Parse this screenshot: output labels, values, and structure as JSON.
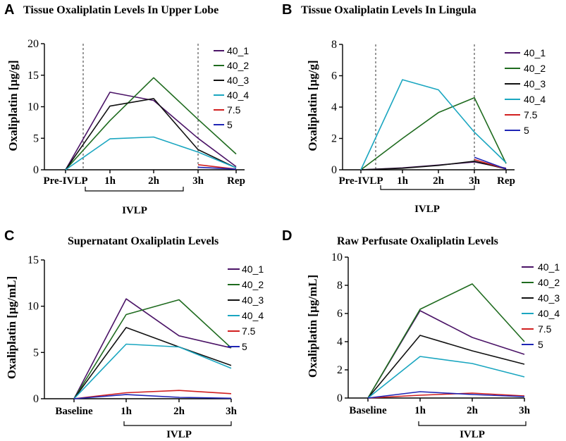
{
  "chart_data": [
    {
      "panel": "A",
      "type": "line",
      "title": "Tissue Oxaliplatin Levels In Upper Lobe",
      "ylabel": "Oxaliplatin [µg/g]",
      "xlabel": "",
      "categories": [
        "Pre-IVLP",
        "1h",
        "2h",
        "3h",
        "Rep"
      ],
      "ylim": [
        0,
        20
      ],
      "yticks": [
        0,
        5,
        10,
        15,
        20
      ],
      "bracket_label": "IVLP",
      "series": [
        {
          "name": "40_1",
          "color": "#4b1467",
          "values": [
            0,
            12.3,
            11.0,
            5.0,
            0.5
          ]
        },
        {
          "name": "40_2",
          "color": "#1f6b1f",
          "values": [
            0,
            7.8,
            14.6,
            8.0,
            2.5
          ]
        },
        {
          "name": "40_3",
          "color": "#111111",
          "values": [
            0,
            10.1,
            11.3,
            3.2,
            0.3
          ]
        },
        {
          "name": "40_4",
          "color": "#1aa6c0",
          "values": [
            0,
            4.9,
            5.2,
            2.8,
            0.3
          ]
        },
        {
          "name": "7.5",
          "color": "#d11f1f",
          "values": [
            null,
            null,
            null,
            0.8,
            0.1
          ]
        },
        {
          "name": "5",
          "color": "#1f25b5",
          "values": [
            null,
            null,
            null,
            0.4,
            0.1
          ]
        }
      ]
    },
    {
      "panel": "B",
      "type": "line",
      "title": "Tissue Oxaliplatin Levels In Lingula",
      "ylabel": "Oxaliplatin [µg/g]",
      "xlabel": "",
      "categories": [
        "Pre-IVLP",
        "1h",
        "2h",
        "3h",
        "Rep"
      ],
      "ylim": [
        0,
        8
      ],
      "yticks": [
        0,
        2,
        4,
        6,
        8
      ],
      "bracket_label": "IVLP",
      "series": [
        {
          "name": "40_1",
          "color": "#4b1467",
          "values": [
            0,
            0.12,
            0.3,
            0.5,
            0.1
          ]
        },
        {
          "name": "40_2",
          "color": "#1f6b1f",
          "values": [
            0,
            2.0,
            3.65,
            4.6,
            0.4
          ]
        },
        {
          "name": "40_3",
          "color": "#111111",
          "values": [
            0,
            0.1,
            0.28,
            0.55,
            0.05
          ]
        },
        {
          "name": "40_4",
          "color": "#1aa6c0",
          "values": [
            0,
            5.75,
            5.1,
            2.4,
            0.45
          ]
        },
        {
          "name": "7.5",
          "color": "#d11f1f",
          "values": [
            null,
            null,
            null,
            0.65,
            0.05
          ]
        },
        {
          "name": "5",
          "color": "#1f25b5",
          "values": [
            null,
            null,
            null,
            0.8,
            0.05
          ]
        }
      ]
    },
    {
      "panel": "C",
      "type": "line",
      "title": "Supernatant Oxaliplatin Levels",
      "ylabel": "Oxaliplatin [µg/mL]",
      "xlabel": "",
      "categories": [
        "Baseline",
        "1h",
        "2h",
        "3h"
      ],
      "ylim": [
        0,
        15
      ],
      "yticks": [
        0,
        5,
        10,
        15
      ],
      "bracket_label": "IVLP",
      "series": [
        {
          "name": "40_1",
          "color": "#4b1467",
          "values": [
            0,
            10.8,
            6.8,
            5.5
          ]
        },
        {
          "name": "40_2",
          "color": "#1f6b1f",
          "values": [
            0,
            9.1,
            10.7,
            5.5
          ]
        },
        {
          "name": "40_3",
          "color": "#111111",
          "values": [
            0,
            7.7,
            5.6,
            3.6
          ]
        },
        {
          "name": "40_4",
          "color": "#1aa6c0",
          "values": [
            0,
            5.9,
            5.6,
            3.3
          ]
        },
        {
          "name": "7.5",
          "color": "#d11f1f",
          "values": [
            0,
            0.65,
            0.9,
            0.55
          ]
        },
        {
          "name": "5",
          "color": "#1f25b5",
          "values": [
            0,
            0.45,
            0.15,
            0.05
          ]
        }
      ]
    },
    {
      "panel": "D",
      "type": "line",
      "title": "Raw Perfusate Oxaliplatin Levels",
      "ylabel": "Oxaliplatin [µg/mL]",
      "xlabel": "",
      "categories": [
        "Baseline",
        "1h",
        "2h",
        "3h"
      ],
      "ylim": [
        0,
        10
      ],
      "yticks": [
        0,
        2,
        4,
        6,
        8,
        10
      ],
      "bracket_label": "IVLP",
      "series": [
        {
          "name": "40_1",
          "color": "#4b1467",
          "values": [
            0,
            6.2,
            4.3,
            3.1
          ]
        },
        {
          "name": "40_2",
          "color": "#1f6b1f",
          "values": [
            0,
            6.3,
            8.1,
            4.0
          ]
        },
        {
          "name": "40_3",
          "color": "#111111",
          "values": [
            0,
            4.45,
            3.35,
            2.4
          ]
        },
        {
          "name": "40_4",
          "color": "#1aa6c0",
          "values": [
            0,
            2.95,
            2.45,
            1.5
          ]
        },
        {
          "name": "7.5",
          "color": "#d11f1f",
          "values": [
            0,
            0.2,
            0.35,
            0.15
          ]
        },
        {
          "name": "5",
          "color": "#1f25b5",
          "values": [
            0,
            0.45,
            0.25,
            0.1
          ]
        }
      ]
    }
  ]
}
